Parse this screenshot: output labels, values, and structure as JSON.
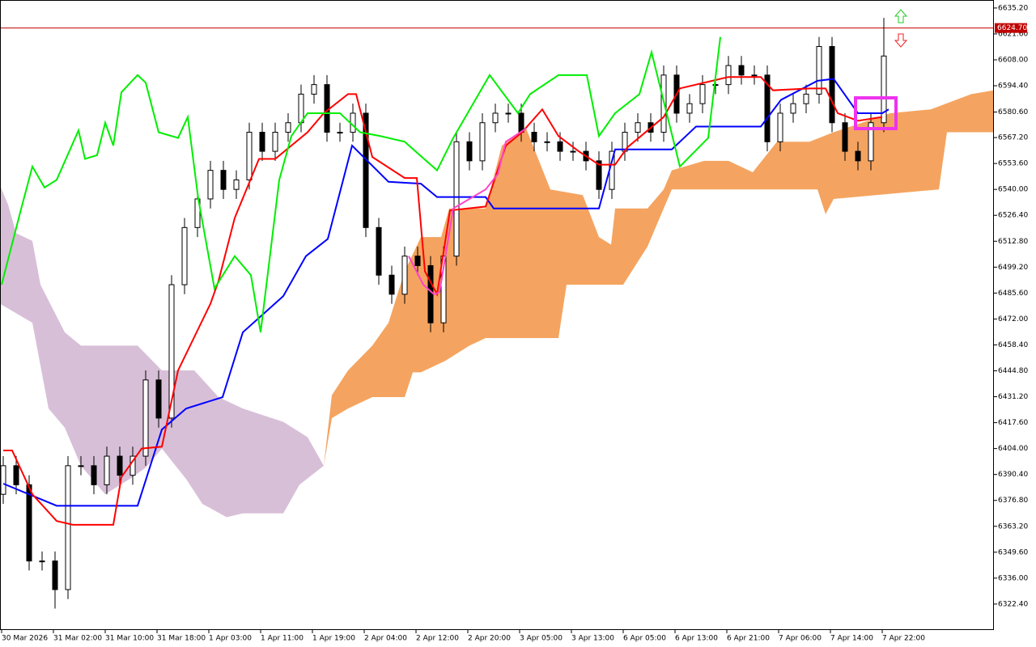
{
  "chart_data": {
    "type": "candlestick",
    "xlim": [
      -0.5,
      153
    ],
    "ylim": [
      6309.2,
      6639.4
    ],
    "xticks": [
      {
        "value": -0.25,
        "label": "30 Mar 2026"
      },
      {
        "value": 7.75,
        "label": "31 Mar 02:00"
      },
      {
        "value": 15.75,
        "label": "31 Mar 10:00"
      },
      {
        "value": 23.75,
        "label": "31 Mar 18:00"
      },
      {
        "value": 31.75,
        "label": "1 Apr 03:00"
      },
      {
        "value": 39.75,
        "label": "1 Apr 11:00"
      },
      {
        "value": 47.75,
        "label": "1 Apr 19:00"
      },
      {
        "value": 55.75,
        "label": "2 Apr 04:00"
      },
      {
        "value": 63.75,
        "label": "2 Apr 12:00"
      },
      {
        "value": 71.75,
        "label": "2 Apr 20:00"
      },
      {
        "value": 79.75,
        "label": "3 Apr 05:00"
      },
      {
        "value": 87.75,
        "label": "3 Apr 13:00"
      },
      {
        "value": 95.75,
        "label": "6 Apr 05:00"
      },
      {
        "value": 103.75,
        "label": "6 Apr 13:00"
      },
      {
        "value": 111.75,
        "label": "6 Apr 21:00"
      },
      {
        "value": 119.75,
        "label": "7 Apr 06:00"
      },
      {
        "value": 127.75,
        "label": "7 Apr 14:00"
      },
      {
        "value": 135.75,
        "label": "7 Apr 22:00"
      }
    ],
    "yticks": [
      {
        "value": 6635.2,
        "label": "6635.20"
      },
      {
        "value": 6621.6,
        "label": "6621.60"
      },
      {
        "value": 6608,
        "label": "6608.00"
      },
      {
        "value": 6594.4,
        "label": "6594.40"
      },
      {
        "value": 6580.6,
        "label": "6580.60"
      },
      {
        "value": 6567.2,
        "label": "6567.20"
      },
      {
        "value": 6553.6,
        "label": "6553.60"
      },
      {
        "value": 6540,
        "label": "6540.00"
      },
      {
        "value": 6526.4,
        "label": "6526.40"
      },
      {
        "value": 6512.8,
        "label": "6512.80"
      },
      {
        "value": 6499.2,
        "label": "6499.20"
      },
      {
        "value": 6485.6,
        "label": "6485.60"
      },
      {
        "value": 6472,
        "label": "6472.00"
      },
      {
        "value": 6458.4,
        "label": "6458.40"
      },
      {
        "value": 6444.8,
        "label": "6444.80"
      },
      {
        "value": 6431.2,
        "label": "6431.20"
      },
      {
        "value": 6417.6,
        "label": "6417.60"
      },
      {
        "value": 6404,
        "label": "6404.00"
      },
      {
        "value": 6390.4,
        "label": "6390.40"
      },
      {
        "value": 6376.8,
        "label": "6376.80"
      },
      {
        "value": 6363.2,
        "label": "6363.20"
      },
      {
        "value": 6349.6,
        "label": "6349.60"
      },
      {
        "value": 6336,
        "label": "6336.00"
      },
      {
        "value": 6322.4,
        "label": "6322.40"
      }
    ],
    "price_line": {
      "value": 6624.7,
      "label": "6624.70",
      "color": "#c00000"
    },
    "candles": {
      "up_color": "#ffffff",
      "down_color": "#000000",
      "x": [
        0,
        2,
        4,
        6,
        8,
        10,
        12,
        14,
        16,
        18,
        20,
        22,
        24,
        26,
        28,
        30,
        32,
        34,
        36,
        38,
        40,
        42,
        44,
        46,
        48,
        50,
        52,
        54,
        56,
        58,
        60,
        62,
        64,
        66,
        68,
        70,
        72,
        74,
        76,
        78,
        80,
        82,
        84,
        86,
        88,
        90,
        92,
        94,
        96,
        98,
        100,
        102,
        104,
        106,
        108,
        110,
        112,
        114,
        116,
        118,
        120,
        122,
        124,
        126,
        128,
        130,
        132,
        134,
        136
      ],
      "open": [
        6380,
        6395,
        6385,
        6345,
        6345,
        6330,
        6395,
        6395,
        6385,
        6400,
        6390,
        6400,
        6440,
        6420,
        6490,
        6520,
        6535,
        6550,
        6540,
        6545,
        6570,
        6560,
        6570,
        6575,
        6590,
        6595,
        6570,
        6570,
        6580,
        6520,
        6495,
        6485,
        6505,
        6500,
        6470,
        6505,
        6565,
        6555,
        6575,
        6580,
        6580,
        6570,
        6565,
        6565,
        6560,
        6560,
        6555,
        6540,
        6560,
        6570,
        6575,
        6570,
        6600,
        6580,
        6585,
        6595,
        6595,
        6605,
        6600,
        6600,
        6565,
        6580,
        6585,
        6590,
        6615,
        6575,
        6560,
        6555,
        6575
      ],
      "high": [
        6400,
        6400,
        6390,
        6350,
        6350,
        6400,
        6400,
        6400,
        6405,
        6405,
        6405,
        6445,
        6445,
        6495,
        6525,
        6540,
        6555,
        6555,
        6550,
        6575,
        6575,
        6575,
        6580,
        6595,
        6600,
        6600,
        6575,
        6585,
        6585,
        6525,
        6500,
        6510,
        6510,
        6505,
        6510,
        6570,
        6570,
        6580,
        6585,
        6585,
        6585,
        6575,
        6570,
        6570,
        6565,
        6565,
        6560,
        6565,
        6575,
        6580,
        6580,
        6605,
        6605,
        6590,
        6600,
        6600,
        6610,
        6610,
        6605,
        6605,
        6585,
        6590,
        6595,
        6620,
        6620,
        6580,
        6565,
        6580,
        6630
      ],
      "low": [
        6375,
        6380,
        6340,
        6340,
        6320,
        6325,
        6390,
        6380,
        6380,
        6385,
        6385,
        6395,
        6415,
        6415,
        6485,
        6515,
        6530,
        6535,
        6535,
        6540,
        6555,
        6555,
        6565,
        6570,
        6585,
        6565,
        6565,
        6565,
        6515,
        6490,
        6480,
        6480,
        6495,
        6465,
        6465,
        6500,
        6550,
        6550,
        6570,
        6575,
        6565,
        6560,
        6560,
        6555,
        6555,
        6550,
        6535,
        6535,
        6555,
        6565,
        6565,
        6565,
        6575,
        6575,
        6580,
        6590,
        6590,
        6595,
        6595,
        6560,
        6560,
        6575,
        6580,
        6585,
        6570,
        6555,
        6550,
        6550,
        6570
      ],
      "close": [
        6395,
        6385,
        6345,
        6345,
        6330,
        6395,
        6395,
        6385,
        6400,
        6390,
        6400,
        6440,
        6420,
        6490,
        6520,
        6535,
        6550,
        6540,
        6545,
        6570,
        6560,
        6570,
        6575,
        6590,
        6595,
        6570,
        6570,
        6580,
        6520,
        6495,
        6485,
        6505,
        6500,
        6470,
        6505,
        6565,
        6555,
        6575,
        6580,
        6580,
        6570,
        6565,
        6565,
        6560,
        6560,
        6555,
        6540,
        6560,
        6570,
        6575,
        6570,
        6600,
        6580,
        6585,
        6595,
        6595,
        6605,
        6600,
        6600,
        6565,
        6580,
        6585,
        6590,
        6615,
        6575,
        6560,
        6555,
        6575,
        6610
      ]
    },
    "clouds": [
      {
        "color": "#d8bfd8",
        "upper": {
          "x": [
            -0.5,
            0.75,
            2,
            4.5,
            5.75,
            9.5,
            12,
            20.75,
            24.5,
            29.5,
            33.25,
            37,
            43.25,
            47,
            49.5
          ],
          "values": [
            6542,
            6532,
            6517,
            6513,
            6490,
            6465,
            6458,
            6458,
            6445,
            6445,
            6431,
            6425,
            6418,
            6410,
            6395
          ]
        },
        "lower": {
          "x": [
            -0.5,
            4.5,
            7,
            9.5,
            12,
            15.75,
            19.5,
            22,
            24.5,
            28.25,
            30.75,
            34.5,
            37,
            43.25,
            45.75,
            49.5
          ],
          "values": [
            6480,
            6470,
            6425,
            6415,
            6395,
            6380,
            6388,
            6394,
            6404,
            6388,
            6375,
            6368,
            6370,
            6370,
            6385,
            6395
          ]
        }
      },
      {
        "color": "#f4a460",
        "upper": {
          "x": [
            49.5,
            50.75,
            53.25,
            57,
            59.5,
            62,
            64.5,
            67.625,
            68.875,
            74.5,
            77,
            80.75,
            84.5,
            89.5,
            92,
            93.875,
            94.5,
            99.5,
            102,
            103.25,
            108.25,
            112,
            115.75,
            119.5,
            124.5,
            128.25,
            137,
            143.25,
            149.5,
            153
          ],
          "values": [
            6395,
            6432,
            6445,
            6458,
            6470,
            6497,
            6515,
            6515,
            6530,
            6530,
            6563,
            6572,
            6540,
            6537,
            6515,
            6511,
            6530,
            6530,
            6540,
            6550,
            6555,
            6555,
            6549,
            6565,
            6565,
            6570,
            6580,
            6582,
            6590,
            6592
          ]
        },
        "lower": {
          "x": [
            49.5,
            50.75,
            53.25,
            57,
            62,
            63.25,
            64.5,
            68.25,
            72,
            74.5,
            85.75,
            87,
            95.75,
            99.5,
            102,
            103.25,
            125.75,
            127,
            128.25,
            144.5,
            145.75,
            153
          ],
          "values": [
            6395,
            6420,
            6425,
            6431,
            6431,
            6444,
            6444,
            6450,
            6458,
            6462,
            6462,
            6490,
            6490,
            6510,
            6530,
            6540,
            6540,
            6527,
            6535,
            6540,
            6570,
            6570
          ]
        }
      }
    ],
    "lines": [
      {
        "color": "#0000ff",
        "x": [
          0,
          8.25,
          20.75,
          24.5,
          28.25,
          33.875,
          37,
          43.25,
          46.75,
          50.125,
          53.875,
          59.5,
          64.5,
          67,
          74.5,
          75.75,
          92,
          94.5,
          103.25,
          107,
          117,
          120.125,
          125.75,
          128.25,
          132,
          135.75,
          136.75
        ],
        "values": [
          6385.6,
          6374,
          6374,
          6414,
          6425,
          6431,
          6465,
          6484,
          6505,
          6514,
          6563,
          6544,
          6543,
          6536,
          6536,
          6530,
          6530,
          6561,
          6561,
          6573,
          6573,
          6587,
          6597,
          6598,
          6580,
          6580,
          6582
        ]
      },
      {
        "color": "#ff0000",
        "x": [
          0,
          1.375,
          4.5,
          8.25,
          10.75,
          17,
          18.25,
          21.375,
          24.5,
          27,
          32,
          33.25,
          35.75,
          39.5,
          42,
          47,
          49.5,
          53.25,
          54.5,
          57,
          62,
          63.875,
          65.125,
          67,
          69,
          74.5,
          77.625,
          80.125,
          83.25,
          85.75,
          88.875,
          92,
          94.5,
          96.375,
          102,
          104.5,
          112,
          117,
          118.875,
          124.5,
          127,
          128.875,
          132,
          135.75
        ],
        "values": [
          6403,
          6403,
          6380,
          6366,
          6364,
          6364,
          6389,
          6404,
          6405,
          6445,
          6480,
          6492,
          6525,
          6556,
          6556,
          6570,
          6580,
          6590,
          6590,
          6557,
          6546,
          6546,
          6497,
          6485,
          6529,
          6531,
          6563,
          6570,
          6582,
          6568,
          6560,
          6553,
          6553,
          6562,
          6578,
          6593,
          6599,
          6599,
          6592,
          6593,
          6593,
          6580,
          6576,
          6578
        ]
      },
      {
        "color": "#00ee00",
        "x": [
          -0.25,
          2.625,
          4.5,
          6.375,
          8.25,
          11.625,
          12.625,
          14.5,
          15.75,
          17,
          18.25,
          20.75,
          22,
          24,
          27,
          28.5,
          30.125,
          32.625,
          35.75,
          38.25,
          39.75,
          42.625,
          44.5,
          47,
          52,
          55.125,
          58.25,
          62,
          67,
          69.5,
          75.125,
          79.5,
          81.375,
          85.75,
          90.125,
          92,
          94.5,
          98.25,
          100.125,
          104.5,
          108.875,
          110.75
        ],
        "values": [
          6490,
          6528,
          6552,
          6541,
          6545,
          6571,
          6556,
          6558,
          6575,
          6563,
          6591,
          6600,
          6596,
          6570,
          6567,
          6578,
          6535,
          6488,
          6505,
          6495,
          6465,
          6545,
          6568,
          6580,
          6580,
          6570,
          6568,
          6565,
          6550,
          6567,
          6600,
          6580,
          6590,
          6600,
          6600,
          6568,
          6580,
          6590,
          6612,
          6552,
          6567,
          6620
        ]
      },
      {
        "color": "#ff44cc",
        "x": [
          62.625,
          64.875,
          66.5,
          67.375,
          69.5,
          74.5,
          76.375,
          77.625,
          80.75
        ],
        "values": [
          6505,
          6490,
          6485,
          6486,
          6530,
          6540,
          6548,
          6565,
          6572
        ]
      }
    ]
  }
}
